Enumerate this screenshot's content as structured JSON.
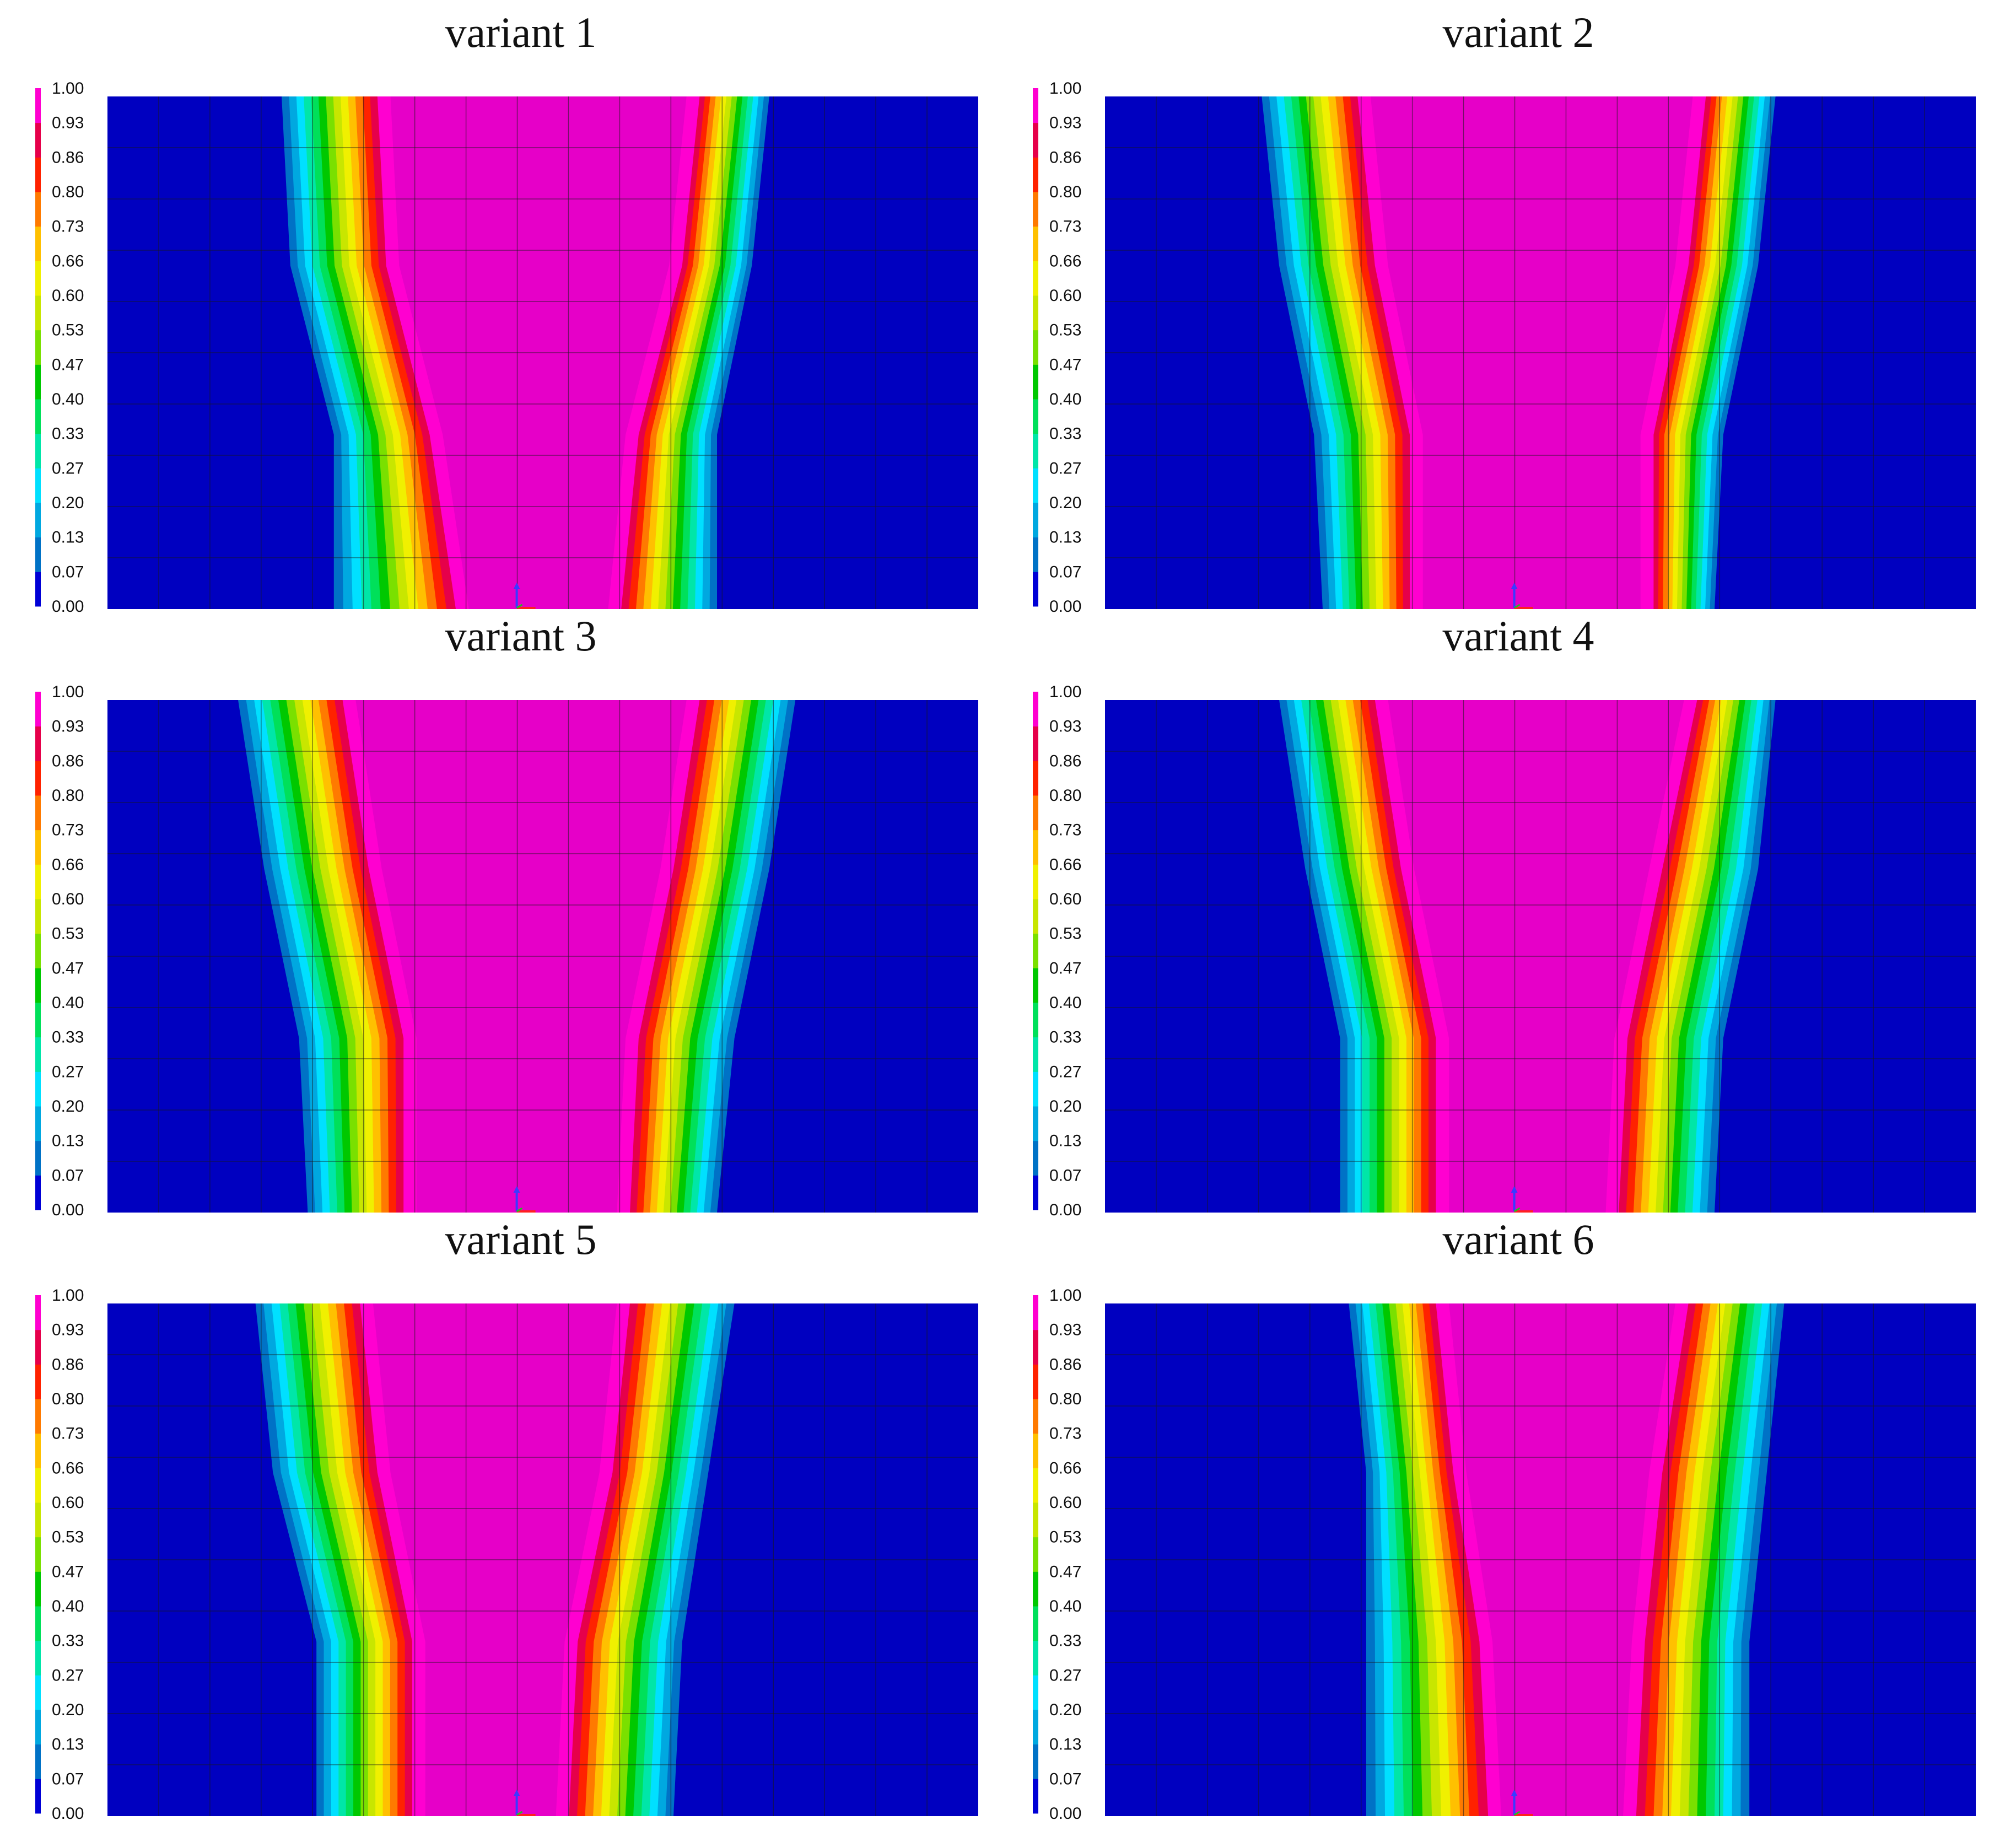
{
  "figure": {
    "colorbar": {
      "tick_labels": [
        "1.00",
        "0.93",
        "0.86",
        "0.80",
        "0.73",
        "0.66",
        "0.60",
        "0.53",
        "0.47",
        "0.40",
        "0.33",
        "0.27",
        "0.20",
        "0.13",
        "0.07",
        "0.00"
      ],
      "colors": [
        "#0000d6",
        "#0072c6",
        "#00a8e0",
        "#00e0ff",
        "#00e6a8",
        "#00e05a",
        "#00c800",
        "#7ae000",
        "#c8e600",
        "#f0f000",
        "#ffc000",
        "#ff7a00",
        "#ff2200",
        "#e6004a",
        "#ff00d0"
      ]
    },
    "field_colors": {
      "background": "#0000c0",
      "outer_blue": "#1e8fe0",
      "core_magenta": "#e600c8"
    },
    "panels": [
      {
        "title": "variant 1"
      },
      {
        "title": "variant 2"
      },
      {
        "title": "variant 3"
      },
      {
        "title": "variant 4"
      },
      {
        "title": "variant 5"
      },
      {
        "title": "variant 6"
      }
    ]
  }
}
